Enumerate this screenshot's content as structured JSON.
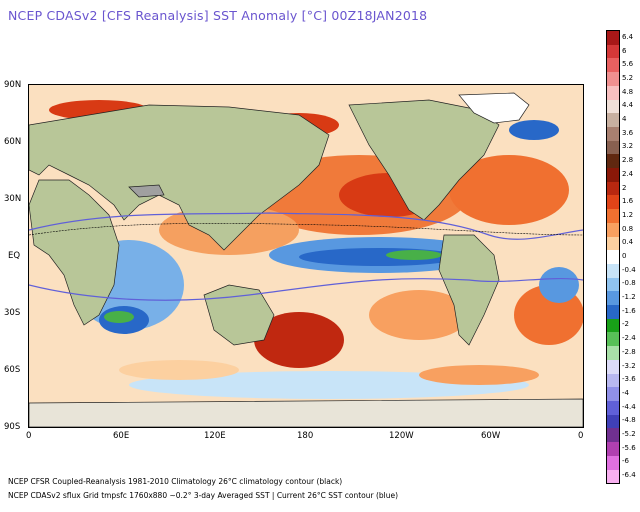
{
  "title": "NCEP CDASv2 [CFS Reanalysis] SST Anomaly [°C] 00Z18JAN2018",
  "map": {
    "lat_labels": [
      "90N",
      "60N",
      "30N",
      "EQ",
      "30S",
      "60S",
      "90S"
    ],
    "lon_labels": [
      "0",
      "60E",
      "120E",
      "180",
      "120W",
      "60W",
      "0"
    ]
  },
  "colorbar": {
    "labels": [
      "6.4",
      "6",
      "5.6",
      "5.2",
      "4.8",
      "4.4",
      "4",
      "3.6",
      "3.2",
      "2.8",
      "2.4",
      "2",
      "1.6",
      "1.2",
      "0.8",
      "0.4",
      "0",
      "-0.4",
      "-0.8",
      "-1.2",
      "-1.6",
      "-2",
      "-2.4",
      "-2.8",
      "-3.2",
      "-3.6",
      "-4",
      "-4.4",
      "-4.8",
      "-5.2",
      "-5.6",
      "-6",
      "-6.4"
    ],
    "colors": [
      "#a81818",
      "#d43838",
      "#e86060",
      "#f09090",
      "#f8c0c0",
      "#f0e0d8",
      "#c8b0a0",
      "#a88070",
      "#886050",
      "#602810",
      "#8a1808",
      "#b82810",
      "#e04418",
      "#f07030",
      "#f8a060",
      "#fcd0a0",
      "#ffffff",
      "#c8e4f8",
      "#90c4f0",
      "#5898e0",
      "#2868c8",
      "#18a018",
      "#58c058",
      "#a8e0a8",
      "#dcdcf8",
      "#b8b8f0",
      "#9090e8",
      "#6060d8",
      "#4040b8",
      "#703090",
      "#b040b0",
      "#e070e0",
      "#f8b0f0"
    ]
  },
  "footer": {
    "line1": "NCEP CFSR Coupled-Reanalysis 1981-2010 Climatology     26°C climatology contour (black)",
    "line2": "NCEP CDASv2 sflux Grid tmpsfc 1760x880 ~0.2°     3-day Averaged SST | Current 26°C SST contour (blue)"
  }
}
